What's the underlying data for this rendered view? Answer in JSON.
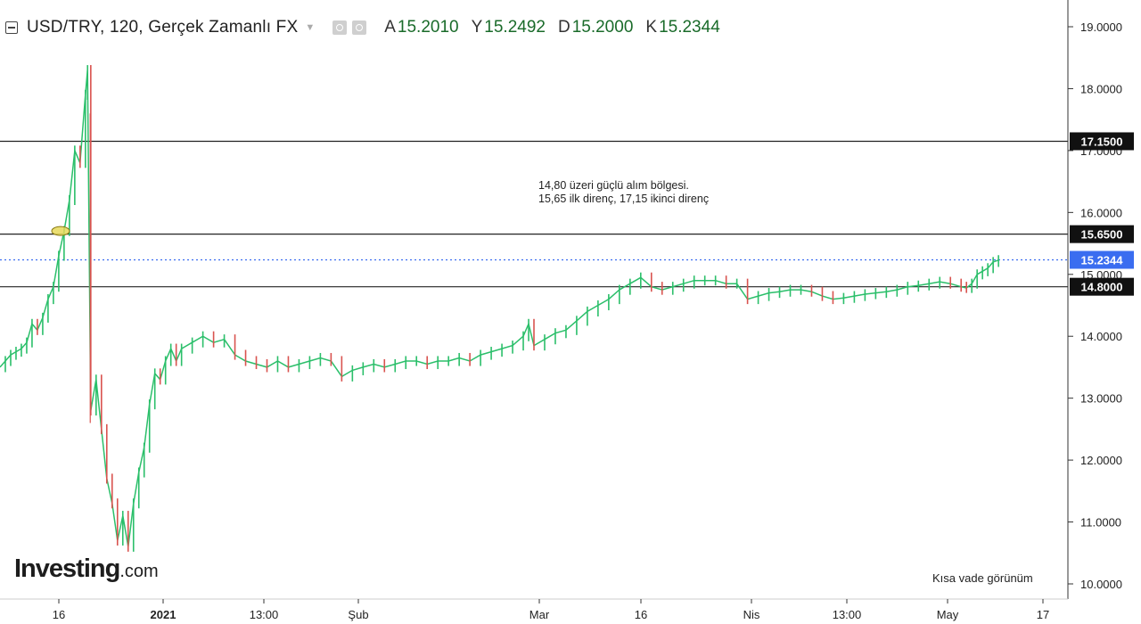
{
  "header": {
    "title": "USD/TRY, 120, Gerçek Zamanlı FX",
    "ohlc": [
      {
        "key": "A",
        "value": "15.2010"
      },
      {
        "key": "Y",
        "value": "15.2492"
      },
      {
        "key": "D",
        "value": "15.2000"
      },
      {
        "key": "K",
        "value": "15.2344"
      }
    ]
  },
  "logo": {
    "main": "Investing",
    "suffix": ".com"
  },
  "note": "Kısa vade görünüm",
  "colors": {
    "up": "#2bbf6a",
    "down": "#d9534f",
    "price_line": "#3a6df0",
    "level_line": "#222222",
    "highlight": "#e6d85a"
  },
  "chart_data": {
    "type": "line",
    "symbol": "USD/TRY",
    "interval": "120",
    "y_ticks": [
      "19.0000",
      "18.0000",
      "17.0000",
      "16.0000",
      "15.0000",
      "14.0000",
      "13.0000",
      "12.0000",
      "11.0000",
      "10.0000"
    ],
    "y_tick_values": [
      19,
      18,
      17,
      16,
      15,
      14,
      13,
      12,
      11,
      10
    ],
    "ylim": [
      9.85,
      19.3
    ],
    "x_ticks": [
      {
        "label": "16",
        "bold": false
      },
      {
        "label": "2021",
        "bold": true
      },
      {
        "label": "13:00",
        "bold": false
      },
      {
        "label": "Şub",
        "bold": false
      },
      {
        "label": "Mar",
        "bold": false
      },
      {
        "label": "16",
        "bold": false
      },
      {
        "label": "Nis",
        "bold": false
      },
      {
        "label": "13:00",
        "bold": false
      },
      {
        "label": "May",
        "bold": false
      },
      {
        "label": "17",
        "bold": false
      }
    ],
    "levels": [
      {
        "label": "17.1500",
        "value": 17.15
      },
      {
        "label": "15.6500",
        "value": 15.65
      },
      {
        "label": "14.8000",
        "value": 14.8
      }
    ],
    "last_price": {
      "label": "15.2344",
      "value": 15.2344
    },
    "annotation": [
      "14,80 üzeri güçlü alım bölgesi.",
      "15,65 ilk direnç, 17,15 ikinci direnç"
    ],
    "price_path": [
      [
        0,
        13.5
      ],
      [
        0.005,
        13.6
      ],
      [
        0.01,
        13.7
      ],
      [
        0.015,
        13.75
      ],
      [
        0.02,
        13.8
      ],
      [
        0.025,
        13.9
      ],
      [
        0.03,
        14.2
      ],
      [
        0.035,
        14.1
      ],
      [
        0.04,
        14.3
      ],
      [
        0.045,
        14.6
      ],
      [
        0.05,
        14.8
      ],
      [
        0.055,
        15.3
      ],
      [
        0.06,
        15.7
      ],
      [
        0.065,
        16.2
      ],
      [
        0.07,
        17.0
      ],
      [
        0.075,
        16.8
      ],
      [
        0.08,
        17.9
      ],
      [
        0.082,
        18.3
      ],
      [
        0.085,
        12.8
      ],
      [
        0.09,
        13.3
      ],
      [
        0.095,
        12.5
      ],
      [
        0.1,
        11.7
      ],
      [
        0.105,
        11.3
      ],
      [
        0.11,
        10.7
      ],
      [
        0.115,
        11.1
      ],
      [
        0.12,
        10.6
      ],
      [
        0.125,
        11.3
      ],
      [
        0.13,
        11.8
      ],
      [
        0.135,
        12.2
      ],
      [
        0.14,
        12.9
      ],
      [
        0.145,
        13.4
      ],
      [
        0.15,
        13.3
      ],
      [
        0.155,
        13.6
      ],
      [
        0.16,
        13.8
      ],
      [
        0.165,
        13.6
      ],
      [
        0.17,
        13.8
      ],
      [
        0.18,
        13.9
      ],
      [
        0.19,
        14.0
      ],
      [
        0.2,
        13.9
      ],
      [
        0.21,
        13.95
      ],
      [
        0.22,
        13.7
      ],
      [
        0.23,
        13.6
      ],
      [
        0.24,
        13.55
      ],
      [
        0.25,
        13.5
      ],
      [
        0.26,
        13.6
      ],
      [
        0.27,
        13.5
      ],
      [
        0.28,
        13.55
      ],
      [
        0.29,
        13.6
      ],
      [
        0.3,
        13.65
      ],
      [
        0.31,
        13.6
      ],
      [
        0.32,
        13.35
      ],
      [
        0.33,
        13.45
      ],
      [
        0.34,
        13.5
      ],
      [
        0.35,
        13.55
      ],
      [
        0.36,
        13.5
      ],
      [
        0.37,
        13.55
      ],
      [
        0.38,
        13.6
      ],
      [
        0.39,
        13.6
      ],
      [
        0.4,
        13.55
      ],
      [
        0.41,
        13.6
      ],
      [
        0.42,
        13.6
      ],
      [
        0.43,
        13.65
      ],
      [
        0.44,
        13.6
      ],
      [
        0.45,
        13.7
      ],
      [
        0.46,
        13.75
      ],
      [
        0.47,
        13.8
      ],
      [
        0.48,
        13.85
      ],
      [
        0.49,
        14.0
      ],
      [
        0.495,
        14.2
      ],
      [
        0.5,
        13.85
      ],
      [
        0.51,
        13.95
      ],
      [
        0.52,
        14.05
      ],
      [
        0.53,
        14.1
      ],
      [
        0.54,
        14.25
      ],
      [
        0.55,
        14.4
      ],
      [
        0.56,
        14.5
      ],
      [
        0.57,
        14.6
      ],
      [
        0.58,
        14.75
      ],
      [
        0.59,
        14.85
      ],
      [
        0.6,
        14.95
      ],
      [
        0.61,
        14.8
      ],
      [
        0.62,
        14.75
      ],
      [
        0.63,
        14.8
      ],
      [
        0.64,
        14.85
      ],
      [
        0.65,
        14.9
      ],
      [
        0.66,
        14.9
      ],
      [
        0.67,
        14.9
      ],
      [
        0.68,
        14.85
      ],
      [
        0.69,
        14.85
      ],
      [
        0.7,
        14.6
      ],
      [
        0.71,
        14.65
      ],
      [
        0.72,
        14.7
      ],
      [
        0.73,
        14.72
      ],
      [
        0.74,
        14.75
      ],
      [
        0.75,
        14.75
      ],
      [
        0.76,
        14.72
      ],
      [
        0.77,
        14.65
      ],
      [
        0.78,
        14.6
      ],
      [
        0.79,
        14.62
      ],
      [
        0.8,
        14.65
      ],
      [
        0.81,
        14.68
      ],
      [
        0.82,
        14.7
      ],
      [
        0.83,
        14.72
      ],
      [
        0.84,
        14.75
      ],
      [
        0.85,
        14.8
      ],
      [
        0.86,
        14.82
      ],
      [
        0.87,
        14.85
      ],
      [
        0.88,
        14.88
      ],
      [
        0.89,
        14.85
      ],
      [
        0.9,
        14.8
      ],
      [
        0.905,
        14.78
      ],
      [
        0.91,
        14.85
      ],
      [
        0.915,
        15.0
      ],
      [
        0.92,
        15.05
      ],
      [
        0.925,
        15.1
      ],
      [
        0.93,
        15.2
      ],
      [
        0.935,
        15.23
      ]
    ]
  }
}
